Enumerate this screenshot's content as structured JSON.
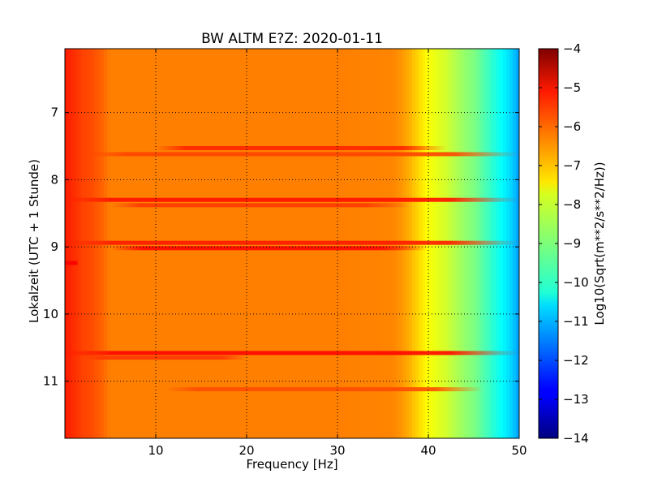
{
  "chart_data": {
    "type": "heatmap",
    "title": "BW ALTM E?Z: 2020-01-11",
    "xlabel": "Frequency [Hz]",
    "ylabel": "Lokalzeit (UTC + 1 Stunde)",
    "xlim": [
      0,
      50
    ],
    "ylim": [
      6.05,
      11.85
    ],
    "y_inverted": true,
    "grid": true,
    "x_ticks": [
      10,
      20,
      30,
      40,
      50
    ],
    "x_tick_labels": [
      "10",
      "20",
      "30",
      "40",
      "50"
    ],
    "y_ticks": [
      7,
      8,
      9,
      10,
      11
    ],
    "y_tick_labels": [
      "7",
      "8",
      "9",
      "10",
      "11"
    ],
    "colormap": "jet",
    "colorbar": {
      "label": "Log10(Sqrt(m**2/s**2/Hz))",
      "range": [
        -14,
        -4
      ],
      "ticks": [
        -4,
        -5,
        -6,
        -7,
        -8,
        -9,
        -10,
        -11,
        -12,
        -13,
        -14
      ],
      "tick_labels": [
        "−4",
        "−5",
        "−6",
        "−7",
        "−8",
        "−9",
        "−10",
        "−11",
        "−12",
        "−13",
        "−14"
      ]
    },
    "frequency_profile": {
      "frequency_hz": [
        0,
        1,
        2,
        3,
        4,
        5,
        8,
        12,
        20,
        30,
        36,
        37,
        38,
        39,
        40,
        41,
        42,
        43,
        44,
        45,
        46,
        47,
        48,
        49,
        50
      ],
      "level": [
        -5.5,
        -5.7,
        -5.9,
        -6.0,
        -6.2,
        -6.5,
        -6.5,
        -6.5,
        -6.5,
        -6.5,
        -6.55,
        -6.7,
        -7.0,
        -7.4,
        -7.8,
        -8.0,
        -8.2,
        -8.5,
        -8.8,
        -9.0,
        -9.4,
        -9.8,
        -10.2,
        -10.6,
        -11.2
      ]
    },
    "events": [
      {
        "time": 7.53,
        "f_start": 10,
        "f_end": 42,
        "level": -5.6
      },
      {
        "time": 7.62,
        "f_start": 2,
        "f_end": 50,
        "level": -5.9
      },
      {
        "time": 8.3,
        "f_start": 0,
        "f_end": 50,
        "level": -5.4
      },
      {
        "time": 8.38,
        "f_start": 5,
        "f_end": 38,
        "level": -5.8
      },
      {
        "time": 8.94,
        "f_start": 0,
        "f_end": 50,
        "level": -5.5
      },
      {
        "time": 9.02,
        "f_start": 5,
        "f_end": 40,
        "level": -5.3
      },
      {
        "time": 9.24,
        "f_start": 0,
        "f_end": 1.5,
        "level": -5.2
      },
      {
        "time": 10.58,
        "f_start": 0,
        "f_end": 50,
        "level": -5.3
      },
      {
        "time": 10.65,
        "f_start": 2,
        "f_end": 20,
        "level": -5.8
      },
      {
        "time": 11.12,
        "f_start": 11,
        "f_end": 46,
        "level": -6.0
      }
    ]
  }
}
